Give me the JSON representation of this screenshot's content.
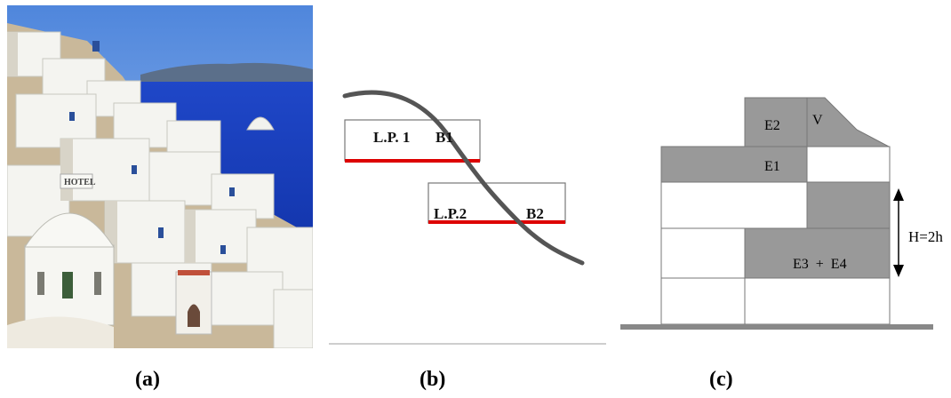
{
  "captions": {
    "a": "(a)",
    "b": "(b)",
    "c": "(c)"
  },
  "panel_b": {
    "plot1_label": "L.P. 1",
    "block1_label": "B1",
    "plot2_label": "L.P.2",
    "block2_label": "B2"
  },
  "panel_c": {
    "e2": "E2",
    "v": "V",
    "e1": "E1",
    "e34": "E3  +  E4",
    "height": "H=2h"
  },
  "colors": {
    "shade": "#999999",
    "red_line": "#dd0000",
    "curve": "#555555",
    "sea": "#1a3fd0",
    "sky": "#6fa3e8"
  }
}
